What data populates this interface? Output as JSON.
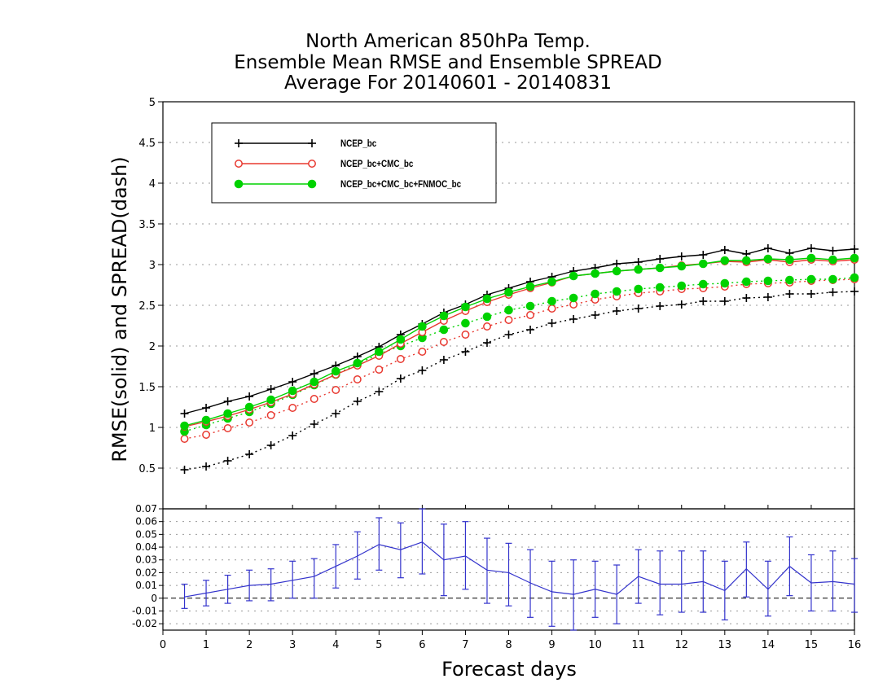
{
  "title": {
    "line1": "North American 850hPa Temp.",
    "line2": "Ensemble Mean RMSE and Ensemble SPREAD",
    "line3": "Average For 20140601 - 20140831"
  },
  "chart_data": [
    {
      "type": "line",
      "xlabel": "Forecast days",
      "ylabel": "RMSE(solid) and SPREAD(dash)",
      "xlim": [
        0,
        16
      ],
      "ylim": [
        0,
        5
      ],
      "yticks": [
        "0.5",
        "1",
        "1.5",
        "2",
        "2.5",
        "3",
        "3.5",
        "4",
        "4.5",
        "5"
      ],
      "xticks": [
        "0",
        "1",
        "2",
        "3",
        "4",
        "5",
        "6",
        "7",
        "8",
        "9",
        "10",
        "11",
        "12",
        "13",
        "14",
        "15",
        "16"
      ],
      "grid": true,
      "legend_position": "top-left",
      "x": [
        0.5,
        1,
        1.5,
        2,
        2.5,
        3,
        3.5,
        4,
        4.5,
        5,
        5.5,
        6,
        6.5,
        7,
        7.5,
        8,
        8.5,
        9,
        9.5,
        10,
        10.5,
        11,
        11.5,
        12,
        12.5,
        13,
        13.5,
        14,
        14.5,
        15,
        15.5,
        16
      ],
      "series": [
        {
          "name": "NCEP_bc",
          "style": "solid",
          "color": "#000000",
          "marker": "plus",
          "values": [
            1.17,
            1.24,
            1.32,
            1.38,
            1.47,
            1.56,
            1.66,
            1.76,
            1.87,
            1.99,
            2.14,
            2.27,
            2.41,
            2.51,
            2.63,
            2.71,
            2.79,
            2.85,
            2.92,
            2.96,
            3.01,
            3.03,
            3.07,
            3.1,
            3.12,
            3.18,
            3.13,
            3.2,
            3.14,
            3.2,
            3.17,
            3.19
          ]
        },
        {
          "name": "NCEP_bc+CMC_bc",
          "style": "solid",
          "color": "#e8382f",
          "marker": "open-circle",
          "values": [
            1.01,
            1.07,
            1.14,
            1.22,
            1.31,
            1.41,
            1.53,
            1.65,
            1.76,
            1.88,
            2.03,
            2.17,
            2.31,
            2.43,
            2.54,
            2.63,
            2.71,
            2.78,
            2.86,
            2.89,
            2.92,
            2.94,
            2.96,
            2.99,
            3.01,
            3.04,
            3.03,
            3.06,
            3.03,
            3.06,
            3.04,
            3.06
          ]
        },
        {
          "name": "NCEP_bc+CMC_bc+FNMOC_bc",
          "style": "solid",
          "color": "#00d200",
          "marker": "filled-circle",
          "values": [
            1.02,
            1.09,
            1.17,
            1.25,
            1.34,
            1.45,
            1.56,
            1.69,
            1.79,
            1.93,
            2.08,
            2.24,
            2.37,
            2.48,
            2.58,
            2.66,
            2.73,
            2.79,
            2.86,
            2.89,
            2.92,
            2.94,
            2.96,
            2.98,
            3.01,
            3.05,
            3.05,
            3.07,
            3.06,
            3.08,
            3.06,
            3.08
          ]
        },
        {
          "name": "NCEP_bc",
          "style": "dotted",
          "color": "#000000",
          "marker": "plus",
          "values": [
            0.48,
            0.52,
            0.59,
            0.67,
            0.78,
            0.9,
            1.04,
            1.17,
            1.32,
            1.44,
            1.6,
            1.7,
            1.83,
            1.93,
            2.04,
            2.14,
            2.2,
            2.28,
            2.33,
            2.38,
            2.43,
            2.46,
            2.49,
            2.51,
            2.55,
            2.55,
            2.59,
            2.6,
            2.64,
            2.64,
            2.66,
            2.67
          ]
        },
        {
          "name": "NCEP_bc+CMC_bc",
          "style": "dotted",
          "color": "#e8382f",
          "marker": "open-circle",
          "values": [
            0.86,
            0.91,
            0.99,
            1.06,
            1.15,
            1.24,
            1.35,
            1.46,
            1.59,
            1.71,
            1.84,
            1.93,
            2.05,
            2.14,
            2.24,
            2.32,
            2.38,
            2.46,
            2.51,
            2.57,
            2.61,
            2.65,
            2.67,
            2.7,
            2.71,
            2.73,
            2.76,
            2.77,
            2.78,
            2.8,
            2.81,
            2.82
          ]
        },
        {
          "name": "NCEP_bc+CMC_bc+FNMOC_bc",
          "style": "dotted",
          "color": "#00d200",
          "marker": "filled-circle",
          "values": [
            0.95,
            1.03,
            1.11,
            1.19,
            1.29,
            1.4,
            1.52,
            1.65,
            1.78,
            1.9,
            2.0,
            2.1,
            2.2,
            2.28,
            2.36,
            2.44,
            2.49,
            2.55,
            2.59,
            2.64,
            2.67,
            2.7,
            2.72,
            2.74,
            2.76,
            2.77,
            2.79,
            2.8,
            2.81,
            2.82,
            2.82,
            2.84
          ]
        }
      ]
    },
    {
      "type": "line",
      "xlim": [
        0,
        16
      ],
      "ylim": [
        -0.025,
        0.07
      ],
      "yticks": [
        "-0.02",
        "-0.01",
        "0",
        "0.01",
        "0.02",
        "0.03",
        "0.04",
        "0.05",
        "0.06",
        "0.07"
      ],
      "grid": true,
      "zero_line": "dashed",
      "color": "#3333cc",
      "x": [
        0.5,
        1,
        1.5,
        2,
        2.5,
        3,
        3.5,
        4,
        4.5,
        5,
        5.5,
        6,
        6.5,
        7,
        7.5,
        8,
        8.5,
        9,
        9.5,
        10,
        10.5,
        11,
        11.5,
        12,
        12.5,
        13,
        13.5,
        14,
        14.5,
        15,
        15.5,
        16
      ],
      "values": [
        0.001,
        0.004,
        0.007,
        0.01,
        0.011,
        0.014,
        0.017,
        0.025,
        0.033,
        0.042,
        0.038,
        0.044,
        0.03,
        0.033,
        0.022,
        0.02,
        0.012,
        0.005,
        0.003,
        0.007,
        0.003,
        0.017,
        0.011,
        0.011,
        0.013,
        0.006,
        0.023,
        0.007,
        0.025,
        0.012,
        0.013,
        0.011
      ],
      "err_low": [
        -0.008,
        -0.006,
        -0.004,
        -0.002,
        -0.002,
        0.0,
        0.0,
        0.008,
        0.015,
        0.022,
        0.016,
        0.019,
        0.002,
        0.007,
        -0.004,
        -0.006,
        -0.015,
        -0.022,
        -0.025,
        -0.015,
        -0.02,
        -0.004,
        -0.013,
        -0.011,
        -0.011,
        -0.017,
        0.001,
        -0.014,
        0.002,
        -0.01,
        -0.01,
        -0.011
      ],
      "err_high": [
        0.011,
        0.014,
        0.018,
        0.022,
        0.023,
        0.029,
        0.031,
        0.042,
        0.052,
        0.063,
        0.059,
        0.07,
        0.058,
        0.06,
        0.047,
        0.043,
        0.038,
        0.029,
        0.03,
        0.029,
        0.026,
        0.038,
        0.037,
        0.037,
        0.037,
        0.029,
        0.044,
        0.029,
        0.048,
        0.034,
        0.037,
        0.031
      ]
    }
  ]
}
